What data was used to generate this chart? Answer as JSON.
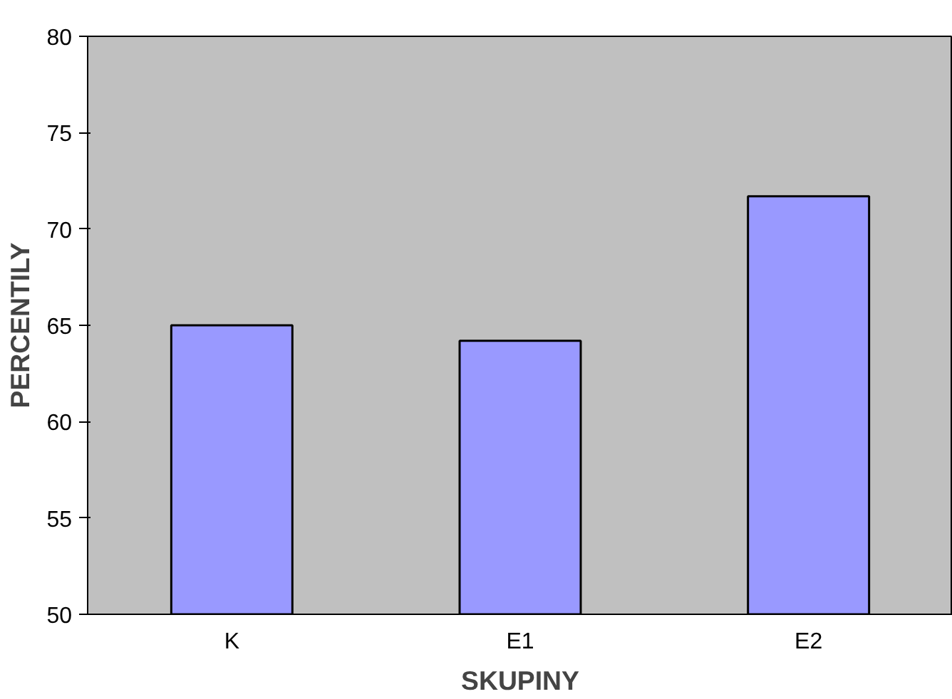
{
  "chart_data": {
    "type": "bar",
    "xlabel": "SKUPINY",
    "ylabel": "PERCENTILY",
    "categories": [
      "K",
      "E1",
      "E2"
    ],
    "values": [
      65.0,
      64.2,
      71.7
    ],
    "color": "#9999ff",
    "ylim": [
      50,
      80
    ],
    "yticks": [
      50,
      55,
      60,
      65,
      70,
      75,
      80
    ],
    "grid": false
  }
}
